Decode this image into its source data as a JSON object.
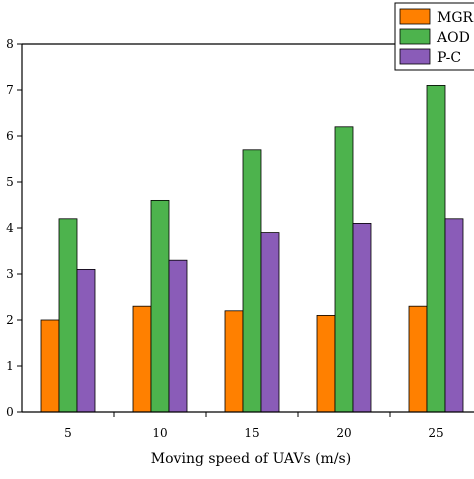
{
  "chart_data": {
    "type": "bar",
    "title": "",
    "xlabel": "Moving speed of UAVs (m/s)",
    "ylabel": "",
    "categories": [
      "5",
      "10",
      "15",
      "20",
      "25"
    ],
    "ylim": [
      0,
      8
    ],
    "yticks": [
      "0",
      "1",
      "2",
      "3",
      "4",
      "5",
      "6",
      "7",
      "8"
    ],
    "grid": false,
    "legend_position": "top-right",
    "series": [
      {
        "name": "MGR",
        "color": "#ff8000",
        "values": [
          2.0,
          2.3,
          2.2,
          2.1,
          2.3
        ]
      },
      {
        "name": "AOD",
        "color": "#4db34d",
        "values": [
          4.2,
          4.6,
          5.7,
          6.2,
          7.1
        ]
      },
      {
        "name": "P-C",
        "color": "#8a5cb8",
        "values": [
          3.1,
          3.3,
          3.9,
          4.1,
          4.2
        ]
      }
    ]
  }
}
